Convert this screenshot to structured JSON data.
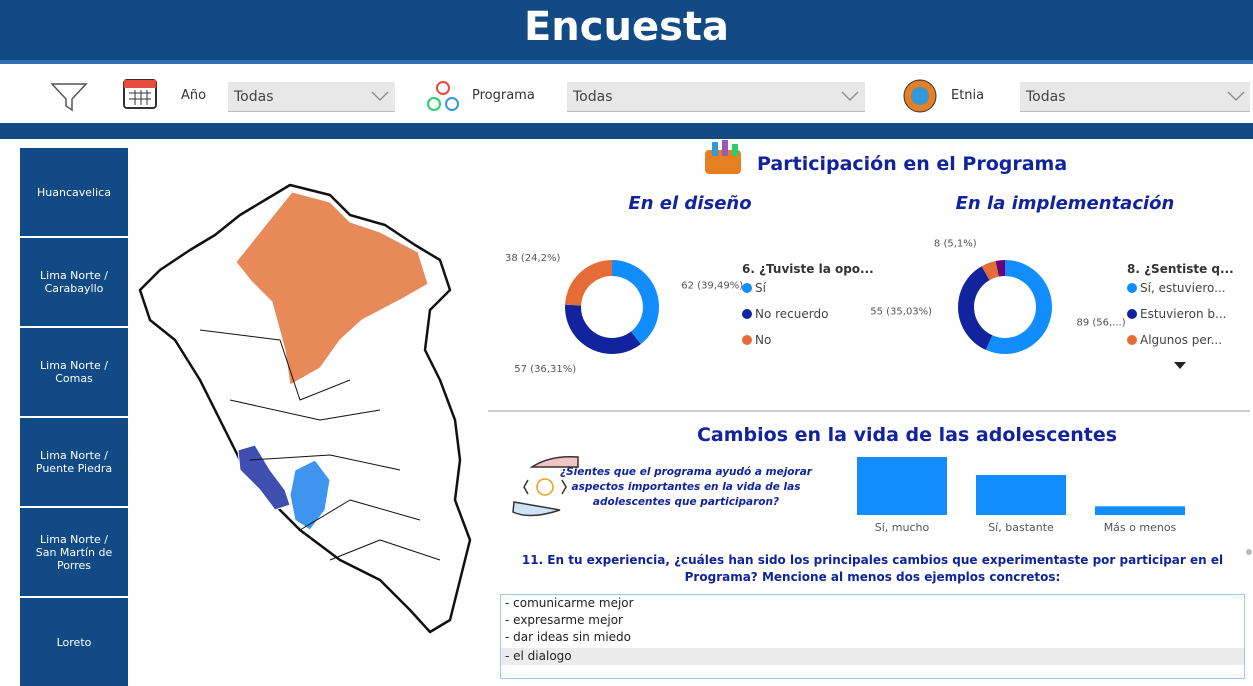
{
  "header": {
    "title": "Encuesta"
  },
  "filters": [
    {
      "label": "Año",
      "value": "Todas"
    },
    {
      "label": "Programa",
      "value": "Todas"
    },
    {
      "label": "Etnia",
      "value": "Todas"
    }
  ],
  "regions": [
    "Huancavelica",
    "Lima Norte / Carabayllo",
    "Lima Norte / Comas",
    "Lima Norte / Puente Piedra",
    "Lima Norte / San Martín de Porres",
    "Loreto"
  ],
  "participation_title": "Participación en el Programa",
  "changes": {
    "title": "Cambios en la vida de las adolescentes",
    "question": "¿Sientes que el programa ayudó a mejorar aspectos importantes en la vida de las adolescentes que participaron?",
    "open_question": "11. En tu experiencia, ¿cuáles han sido los principales cambios que experimentaste por participar en el Programa? Mencione al menos dos ejemplos concretos:",
    "responses": [
      "- comunicarme mejor",
      "- expresarme mejor",
      "- dar ideas sin miedo",
      "- el dialogo"
    ]
  },
  "chart_data": [
    {
      "type": "donut",
      "title": "En el diseño",
      "legend_title": "6. ¿Tuviste la opo...",
      "categories": [
        "Sí",
        "No recuerdo",
        "No"
      ],
      "values": [
        62,
        57,
        38
      ],
      "value_labels": [
        "62 (39,49%)",
        "57 (36,31%)",
        "38 (24,2%)"
      ],
      "colors": [
        "#118dff",
        "#12239e",
        "#e66c37"
      ]
    },
    {
      "type": "donut",
      "title": "En la implementación",
      "legend_title": "8. ¿Sentiste q...",
      "categories": [
        "Sí, estuviero...",
        "Estuvieron b...",
        "Algunos per...",
        null
      ],
      "values": [
        89,
        55,
        8,
        5
      ],
      "value_labels": [
        "89 (56,...)",
        "55 (35,03%)",
        "8 (5,1%)",
        null
      ],
      "colors": [
        "#118dff",
        "#12239e",
        "#e66c37",
        "#6b007b"
      ]
    },
    {
      "type": "bar",
      "categories": [
        "Sí, mucho",
        "Sí, bastante",
        "Más o menos"
      ],
      "values": [
        100,
        69,
        15
      ],
      "color": "#118dff"
    }
  ]
}
